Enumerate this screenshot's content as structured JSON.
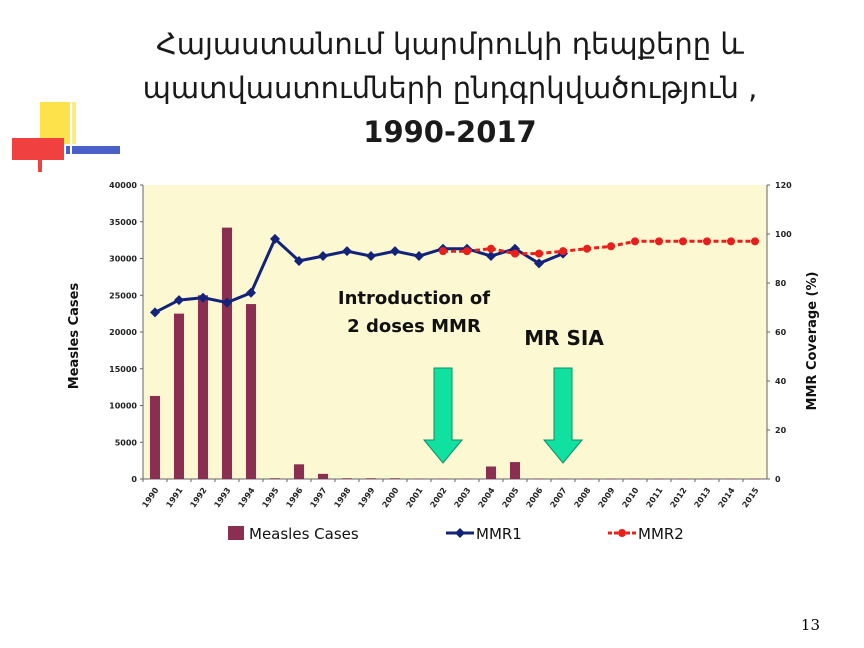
{
  "slide": {
    "title_line1": "Հայաստանում կարմրուկի դեպքերը և",
    "title_line2": "պատվաստումների ընդգրկվածություն ,",
    "title_line3": "1990-2017",
    "slide_number": "13"
  },
  "colors": {
    "cases": "#8b2f52",
    "mmr1": "#14237a",
    "mmr2": "#e8201c",
    "plot_bg": "#fbf8d2",
    "arrow": "#10e0a0",
    "deco_yellow": "#fde24c",
    "deco_red": "#f04040",
    "deco_blue": "#4860c8"
  },
  "chart_data": {
    "type": "bar+line",
    "title": "",
    "categories": [
      "1990",
      "1991",
      "1992",
      "1993",
      "1994",
      "1995",
      "1996",
      "1997",
      "1998",
      "1999",
      "2000",
      "2001",
      "2002",
      "2003",
      "2004",
      "2005",
      "2006",
      "2007",
      "2008",
      "2009",
      "2010",
      "2011",
      "2012",
      "2013",
      "2014",
      "2015"
    ],
    "series": [
      {
        "name": "Measles Cases",
        "type": "bar",
        "axis": "left",
        "values": [
          11300,
          22500,
          25000,
          34200,
          23800,
          100,
          2000,
          700,
          100,
          100,
          100,
          50,
          50,
          50,
          1700,
          2300,
          50,
          50,
          20,
          20,
          50,
          20,
          20,
          20,
          50,
          20
        ]
      },
      {
        "name": "MMR1",
        "type": "line",
        "axis": "right",
        "values": [
          68,
          73,
          74,
          72,
          76,
          98,
          89,
          91,
          93,
          91,
          93,
          91,
          94,
          94,
          91,
          94,
          88,
          92,
          null,
          null,
          null,
          null,
          null,
          null,
          null,
          null
        ]
      },
      {
        "name": "MMR2",
        "type": "line",
        "axis": "right",
        "values": [
          null,
          null,
          null,
          null,
          null,
          null,
          null,
          null,
          null,
          null,
          null,
          null,
          93,
          93,
          94,
          92,
          92,
          93,
          94,
          95,
          97,
          97,
          97,
          97,
          97,
          97
        ]
      }
    ],
    "ylabel": "Measles Cases",
    "y2label": "MMR Coverage (%)",
    "ylim": [
      0,
      40000
    ],
    "y2lim": [
      0,
      120
    ],
    "yticks": [
      0,
      5000,
      10000,
      15000,
      20000,
      25000,
      30000,
      35000,
      40000
    ],
    "y2ticks": [
      0,
      20,
      40,
      60,
      80,
      100,
      120
    ],
    "grid": false,
    "legend": "bottom",
    "annotations": [
      {
        "text_line1": "Introduction of",
        "text_line2": "2 doses MMR",
        "arrow_year": "2002"
      },
      {
        "text": "MR SIA",
        "arrow_year": "2007"
      }
    ]
  }
}
